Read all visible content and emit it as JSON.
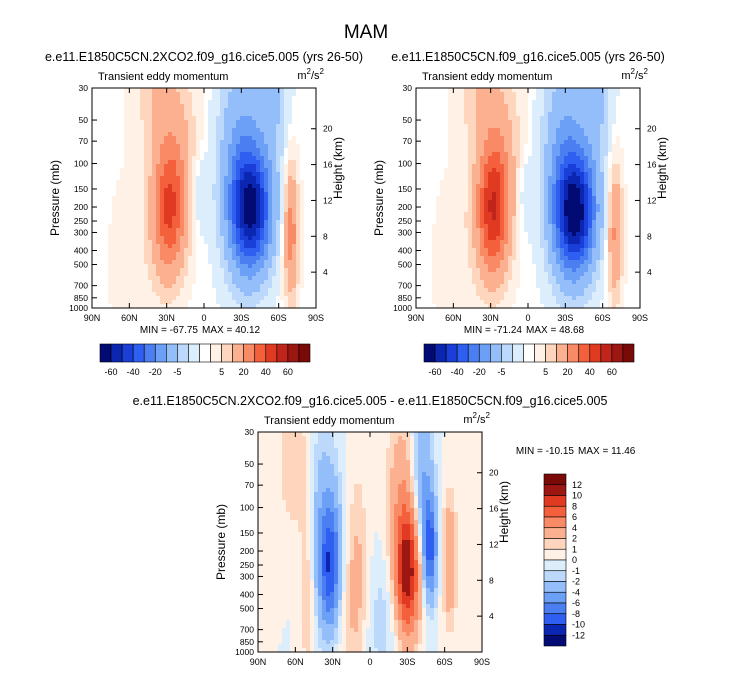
{
  "page_title": "MAM",
  "colors": {
    "positive": [
      "#fff1e6",
      "#fdd6bd",
      "#fbb090",
      "#f98a66",
      "#f45f3c",
      "#e03b22",
      "#c0241a",
      "#9c1612",
      "#7a0a08"
    ],
    "negative": [
      "#dceefc",
      "#bcd9fb",
      "#94befa",
      "#6c9ff6",
      "#4a7ef1",
      "#2f5ff0",
      "#1a3fd8",
      "#0b26b0",
      "#020a73"
    ]
  },
  "chart_data": [
    {
      "type": "contour",
      "title": "e.e11.E1850C5CN.2XCO2.f09_g16.cice5.005 (yrs 26-50)",
      "subtitle_left": "Transient eddy momentum",
      "units_base": "m",
      "units_exp": "2",
      "units_sep": "/s",
      "units_exp2": "2",
      "ylabel": "Pressure (mb)",
      "ylabel_right": "Height (km)",
      "x_ticks": [
        "90N",
        "60N",
        "30N",
        "0",
        "30S",
        "60S",
        "90S"
      ],
      "y_ticks": [
        "30",
        "50",
        "70",
        "100",
        "150",
        "200",
        "250",
        "300",
        "400",
        "500",
        "700",
        "850",
        "1000"
      ],
      "height_ticks": [
        "20",
        "16",
        "12",
        "8",
        "4"
      ],
      "min_label": "MIN = -67.75",
      "max_label": "MAX =  40.12",
      "min": -67.75,
      "max": 40.12,
      "features": [
        {
          "lat": 28,
          "p": 210,
          "amp": 40,
          "wlat": 9,
          "wz": 5
        },
        {
          "lat": 22,
          "p": 70,
          "amp": 10,
          "wlat": 12,
          "wz": 6
        },
        {
          "lat": 40,
          "p": 30,
          "amp": 8,
          "wlat": 12,
          "wz": 4
        },
        {
          "lat": -38,
          "p": 210,
          "amp": -67,
          "wlat": 11,
          "wz": 4.5
        },
        {
          "lat": -30,
          "p": 90,
          "amp": -20,
          "wlat": 12,
          "wz": 8
        },
        {
          "lat": -55,
          "p": 30,
          "amp": -12,
          "wlat": 8,
          "wz": 6
        },
        {
          "lat": 3,
          "p": 160,
          "amp": -6,
          "wlat": 5,
          "wz": 3
        },
        {
          "lat": -70,
          "p": 300,
          "amp": 25,
          "wlat": 4,
          "wz": 5
        },
        {
          "lat": 55,
          "p": 500,
          "amp": 3,
          "wlat": 15,
          "wz": 8
        }
      ]
    },
    {
      "type": "contour",
      "title": "e.e11.E1850C5CN.f09_g16.cice5.005 (yrs 26-50)",
      "subtitle_left": "Transient eddy momentum",
      "units_base": "m",
      "units_exp": "2",
      "units_sep": "/s",
      "units_exp2": "2",
      "ylabel": "Pressure (mb)",
      "ylabel_right": "Height (km)",
      "x_ticks": [
        "90N",
        "60N",
        "30N",
        "0",
        "30S",
        "60S",
        "90S"
      ],
      "y_ticks": [
        "30",
        "50",
        "70",
        "100",
        "150",
        "200",
        "250",
        "300",
        "400",
        "500",
        "700",
        "850",
        "1000"
      ],
      "height_ticks": [
        "20",
        "16",
        "12",
        "8",
        "4"
      ],
      "min_label": "MIN = -71.24",
      "max_label": "MAX =  48.68",
      "min": -71.24,
      "max": 48.68,
      "features": [
        {
          "lat": 28,
          "p": 210,
          "amp": 48,
          "wlat": 9,
          "wz": 5
        },
        {
          "lat": 22,
          "p": 70,
          "amp": 10,
          "wlat": 12,
          "wz": 6
        },
        {
          "lat": 40,
          "p": 30,
          "amp": 8,
          "wlat": 12,
          "wz": 4
        },
        {
          "lat": -38,
          "p": 220,
          "amp": -71,
          "wlat": 11,
          "wz": 4.5
        },
        {
          "lat": -30,
          "p": 90,
          "amp": -20,
          "wlat": 12,
          "wz": 8
        },
        {
          "lat": -55,
          "p": 30,
          "amp": -12,
          "wlat": 8,
          "wz": 6
        },
        {
          "lat": 3,
          "p": 160,
          "amp": -5,
          "wlat": 5,
          "wz": 3
        },
        {
          "lat": -70,
          "p": 300,
          "amp": 22,
          "wlat": 4,
          "wz": 5
        },
        {
          "lat": 55,
          "p": 500,
          "amp": 3,
          "wlat": 15,
          "wz": 8
        }
      ]
    },
    {
      "type": "contour",
      "title": "e.e11.E1850C5CN.2XCO2.f09_g16.cice5.005 - e.e11.E1850C5CN.f09_g16.cice5.005",
      "subtitle_left": "Transient eddy momentum",
      "units_base": "m",
      "units_exp": "2",
      "units_sep": "/s",
      "units_exp2": "2",
      "ylabel": "Pressure (mb)",
      "ylabel_right": "Height (km)",
      "x_ticks": [
        "90N",
        "60N",
        "30N",
        "0",
        "30S",
        "60S",
        "90S"
      ],
      "y_ticks": [
        "30",
        "50",
        "70",
        "100",
        "150",
        "200",
        "250",
        "300",
        "400",
        "500",
        "700",
        "850",
        "1000"
      ],
      "height_ticks": [
        "20",
        "16",
        "12",
        "8",
        "4"
      ],
      "min_label": "MIN = -10.15",
      "max_label": "MAX =  11.46",
      "min": -10.15,
      "max": 11.46,
      "features": [
        {
          "lat": 32,
          "p": 260,
          "amp": -9,
          "wlat": 6,
          "wz": 5
        },
        {
          "lat": 40,
          "p": 120,
          "amp": -3,
          "wlat": 10,
          "wz": 8
        },
        {
          "lat": -30,
          "p": 280,
          "amp": 11.5,
          "wlat": 7,
          "wz": 5
        },
        {
          "lat": -48,
          "p": 190,
          "amp": -9,
          "wlat": 4,
          "wz": 4
        },
        {
          "lat": -42,
          "p": 60,
          "amp": -4,
          "wlat": 6,
          "wz": 6
        },
        {
          "lat": -25,
          "p": 70,
          "amp": 3,
          "wlat": 8,
          "wz": 6
        },
        {
          "lat": -64,
          "p": 230,
          "amp": 4,
          "wlat": 4,
          "wz": 5
        },
        {
          "lat": 50,
          "p": 300,
          "amp": 2.5,
          "wlat": 5,
          "wz": 8
        },
        {
          "lat": 10,
          "p": 250,
          "amp": 2,
          "wlat": 6,
          "wz": 8
        },
        {
          "lat": 60,
          "p": 50,
          "amp": 2,
          "wlat": 10,
          "wz": 6
        },
        {
          "lat": -10,
          "p": 600,
          "amp": -1.5,
          "wlat": 10,
          "wz": 5
        },
        {
          "lat": 20,
          "p": 500,
          "amp": 1.5,
          "wlat": 10,
          "wz": 5
        }
      ]
    }
  ],
  "colorbar_top": {
    "levels": [
      -70,
      -60,
      -50,
      -40,
      -30,
      -20,
      -10,
      -5,
      -1,
      1,
      5,
      10,
      20,
      30,
      40,
      50,
      60,
      70
    ],
    "labels": [
      "-60",
      "-40",
      "-20",
      "-5",
      "5",
      "20",
      "40",
      "60"
    ]
  },
  "colorbar_diff": {
    "levels": [
      -12,
      -10,
      -8,
      -6,
      -4,
      -2,
      -1,
      0,
      1,
      2,
      4,
      6,
      8,
      10,
      12
    ],
    "labels": [
      "12",
      "10",
      "8",
      "6",
      "4",
      "2",
      "1",
      "0",
      "-1",
      "-2",
      "-4",
      "-6",
      "-8",
      "-10",
      "-12"
    ]
  }
}
